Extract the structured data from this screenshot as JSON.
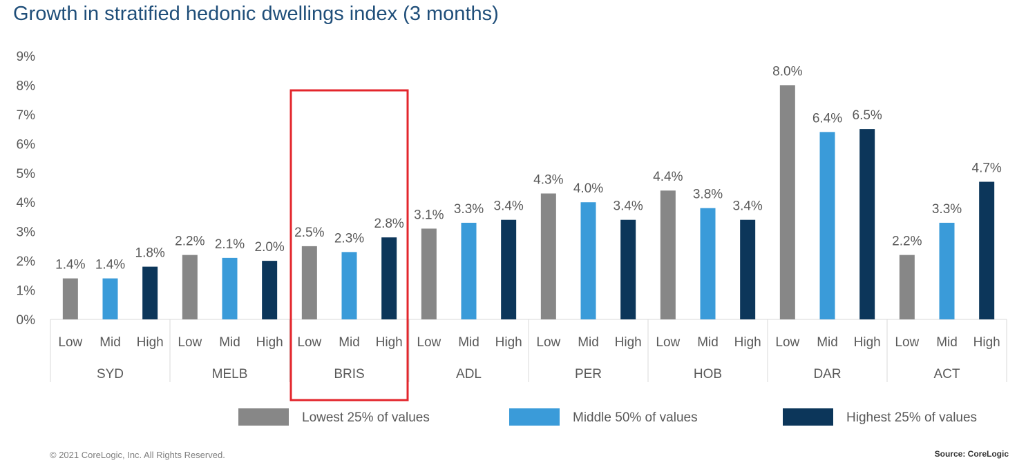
{
  "title": "Growth in stratified hedonic dwellings index (3 months)",
  "footer": {
    "copyright": "© 2021 CoreLogic, Inc. All Rights Reserved.",
    "source": "Source: CoreLogic"
  },
  "colors": {
    "low": "#878787",
    "mid": "#3a9bd9",
    "high": "#0c365a",
    "highlight": "#e3262c",
    "text": "#595959",
    "axis": "#d9d9d9"
  },
  "chart_data": {
    "type": "bar",
    "title": "Growth in stratified hedonic dwellings index (3 months)",
    "xlabel": "",
    "ylabel": "",
    "ylim": [
      0,
      9
    ],
    "yticks": [
      "0%",
      "1%",
      "2%",
      "3%",
      "4%",
      "5%",
      "6%",
      "7%",
      "8%",
      "9%"
    ],
    "grid": false,
    "legend_position": "bottom",
    "groups": [
      "SYD",
      "MELB",
      "BRIS",
      "ADL",
      "PER",
      "HOB",
      "DAR",
      "ACT"
    ],
    "subcategories": [
      "Low",
      "Mid",
      "High"
    ],
    "series": [
      {
        "name": "Lowest 25% of values",
        "key": "low",
        "values": [
          1.4,
          2.2,
          2.5,
          3.1,
          4.3,
          4.4,
          8.0,
          2.2
        ],
        "labels": [
          "1.4%",
          "2.2%",
          "2.5%",
          "3.1%",
          "4.3%",
          "4.4%",
          "8.0%",
          "2.2%"
        ]
      },
      {
        "name": "Middle 50% of values",
        "key": "mid",
        "values": [
          1.4,
          2.1,
          2.3,
          3.3,
          4.0,
          3.8,
          6.4,
          3.3
        ],
        "labels": [
          "1.4%",
          "2.1%",
          "2.3%",
          "3.3%",
          "4.0%",
          "3.8%",
          "6.4%",
          "3.3%"
        ]
      },
      {
        "name": "Highest 25% of values",
        "key": "high",
        "values": [
          1.8,
          2.0,
          2.8,
          3.4,
          3.4,
          3.4,
          6.5,
          4.7
        ],
        "labels": [
          "1.8%",
          "2.0%",
          "2.8%",
          "3.4%",
          "3.4%",
          "3.4%",
          "6.5%",
          "4.7%"
        ]
      }
    ],
    "highlighted_group": "BRIS"
  }
}
